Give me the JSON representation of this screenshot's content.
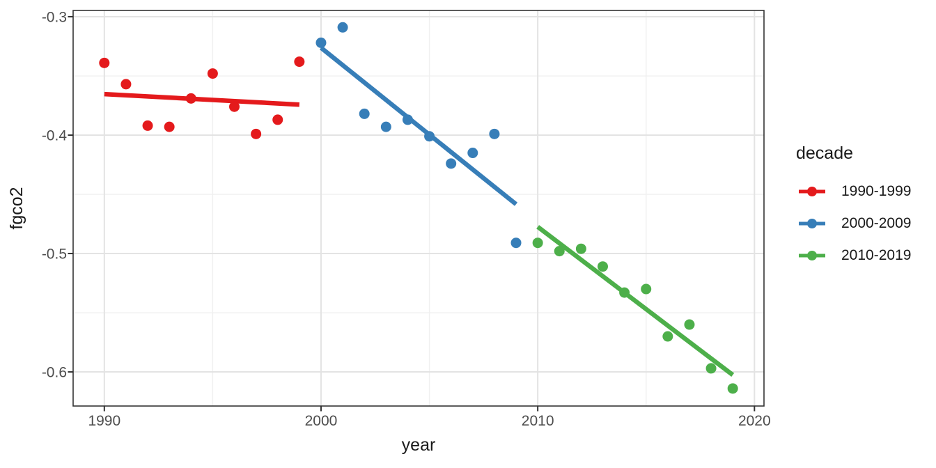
{
  "chart_data": {
    "type": "scatter",
    "title": "",
    "xlabel": "year",
    "ylabel": "fgco2",
    "legend_title": "decade",
    "legend_position": "right",
    "grid": "major+minor",
    "trend": "linear (lm, no se ribbon)",
    "xlim": [
      1988.56,
      2020.44
    ],
    "ylim": [
      -0.6288,
      -0.2947
    ],
    "x_ticks": {
      "values": [
        1990,
        2000,
        2010,
        2020
      ],
      "labels": [
        "1990",
        "2000",
        "2010",
        "2020"
      ],
      "minor": [
        1995,
        2005,
        2015
      ]
    },
    "y_ticks": {
      "values": [
        -0.3,
        -0.4,
        -0.5,
        -0.6
      ],
      "labels": [
        "-0.3",
        "-0.4",
        "-0.5",
        "-0.6"
      ],
      "minor": [
        -0.35,
        -0.45,
        -0.55
      ]
    },
    "style_colors": {
      "panel_border": "#333333",
      "grid_major": "#e3e3e3",
      "grid_minor": "#f0f0f0",
      "tick_label": "#4d4d4d",
      "axis_title": "#1a1a1a",
      "background": "#ffffff"
    },
    "series": [
      {
        "name": "1990-1999",
        "color": "#E41A1C",
        "x": [
          1990,
          1991,
          1992,
          1993,
          1994,
          1995,
          1996,
          1997,
          1998,
          1999
        ],
        "y": [
          -0.339,
          -0.357,
          -0.392,
          -0.393,
          -0.369,
          -0.348,
          -0.376,
          -0.399,
          -0.387,
          -0.338
        ]
      },
      {
        "name": "2000-2009",
        "color": "#377EB8",
        "x": [
          2000,
          2001,
          2002,
          2003,
          2004,
          2005,
          2006,
          2007,
          2008,
          2009
        ],
        "y": [
          -0.322,
          -0.309,
          -0.382,
          -0.393,
          -0.387,
          -0.401,
          -0.424,
          -0.415,
          -0.399,
          -0.491
        ]
      },
      {
        "name": "2010-2019",
        "color": "#4DAF4A",
        "x": [
          2010,
          2011,
          2012,
          2013,
          2014,
          2015,
          2016,
          2017,
          2018,
          2019
        ],
        "y": [
          -0.491,
          -0.498,
          -0.496,
          -0.511,
          -0.533,
          -0.53,
          -0.57,
          -0.56,
          -0.597,
          -0.614
        ]
      }
    ]
  }
}
